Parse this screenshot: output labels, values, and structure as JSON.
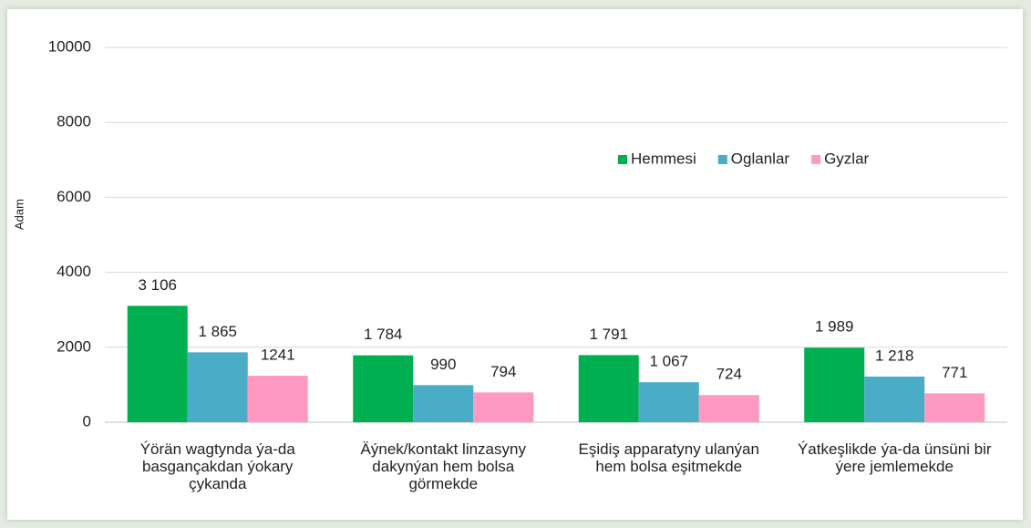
{
  "chart_data": {
    "type": "bar",
    "ylabel": "Adam",
    "categories": [
      "Ýörän wagtynda ýa-da basgançakdan ýokary çykanda",
      "Äýnek/kontakt linzasyny dakynýan hem bolsa görmekde",
      "Eşidiş apparatyny ulanýan hem bolsa eşitmekde",
      "Ýatkeşlikde ýa-da ünsüni bir ýere jemlemekde"
    ],
    "series": [
      {
        "name": "Hemmesi",
        "color": "#00b050",
        "values": [
          3106,
          1784,
          1791,
          1989
        ],
        "value_labels": [
          "3 106",
          "1 784",
          "1 791",
          "1 989"
        ]
      },
      {
        "name": "Oglanlar",
        "color": "#4bacc6",
        "values": [
          1865,
          990,
          1067,
          1218
        ],
        "value_labels": [
          "1 865",
          "990",
          "1 067",
          "1 218"
        ]
      },
      {
        "name": "Gyzlar",
        "color": "#ff99c1",
        "values": [
          1241,
          794,
          724,
          771
        ],
        "value_labels": [
          "1241",
          "794",
          "724",
          "771"
        ]
      }
    ],
    "ylim": [
      0,
      10000
    ],
    "yticks": [
      0,
      2000,
      4000,
      6000,
      8000,
      10000
    ],
    "grid": true,
    "legend": "top-right"
  }
}
